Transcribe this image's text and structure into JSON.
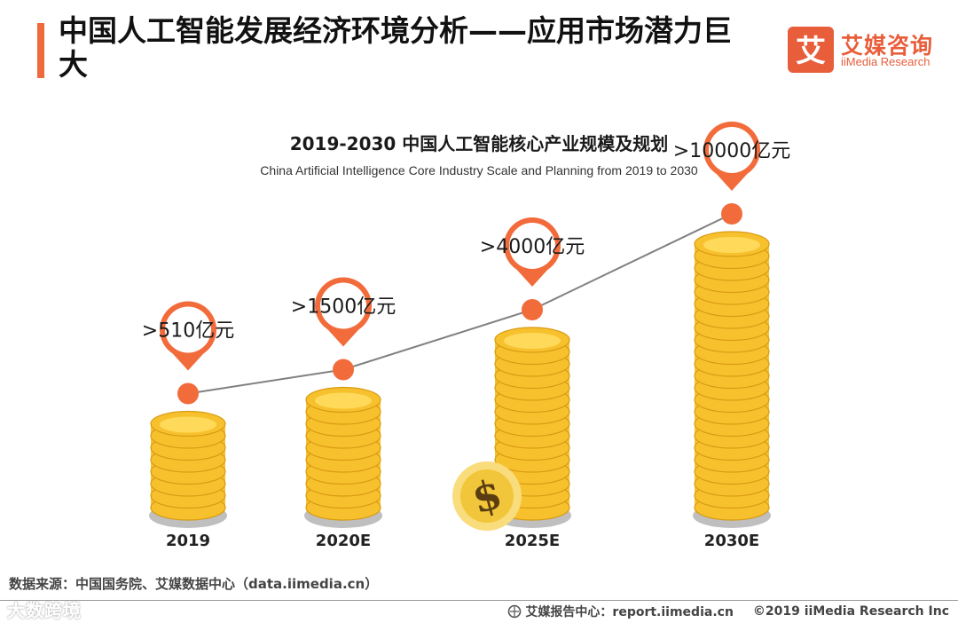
{
  "header": {
    "title": "中国人工智能发展经济环境分析——应用市场潜力巨大",
    "logo_mark": "艾",
    "logo_cn": "艾媒咨询",
    "logo_en": "iiMedia Research"
  },
  "chart_data": {
    "type": "bar",
    "title": "2019-2030 中国人工智能核心产业规模及规划",
    "subtitle": "China Artificial Intelligence Core Industry Scale and Planning from 2019 to 2030",
    "categories": [
      "2019",
      "2020E",
      "2025E",
      "2030E"
    ],
    "values": [
      510,
      1500,
      4000,
      10000
    ],
    "labels": [
      ">510亿元",
      ">1500亿元",
      ">4000亿元",
      ">10000亿元"
    ],
    "unit": "亿元",
    "colors": {
      "coin": "#f7c12e",
      "coin_light": "#ffd95a",
      "coin_dark": "#d99a12",
      "marker": "#f26b3a",
      "line": "#808080",
      "dollar_coin": "#f9dc7c",
      "dollar_inner": "#f2c63a",
      "dollar_sign": "#5a3d10"
    }
  },
  "footer": {
    "source": "数据来源：中国国务院、艾媒数据中心（data.iimedia.cn）",
    "watermark": "大数跨境",
    "report": "艾媒报告中心：report.iimedia.cn",
    "copyright": "©2019  iiMedia Research  Inc"
  }
}
